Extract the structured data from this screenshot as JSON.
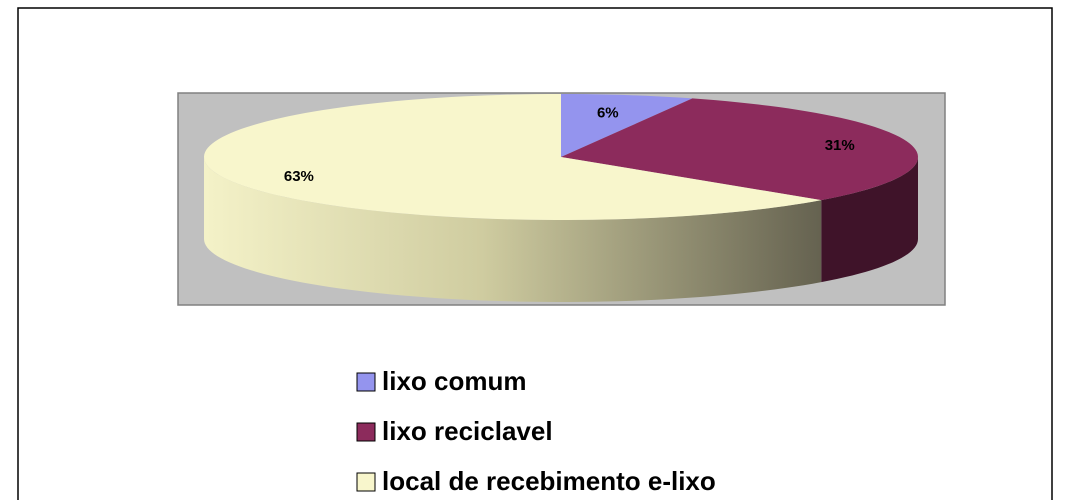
{
  "chart_data": {
    "type": "pie",
    "categories": [
      "lixo comum",
      "lixo reciclavel",
      "local de recebimento e-lixo"
    ],
    "values": [
      6,
      31,
      63
    ],
    "value_labels": [
      "6%",
      "31%",
      "63%"
    ],
    "colors": [
      "#9494ee",
      "#8c2b5c",
      "#f8f6cc"
    ],
    "legend": "bottom"
  }
}
